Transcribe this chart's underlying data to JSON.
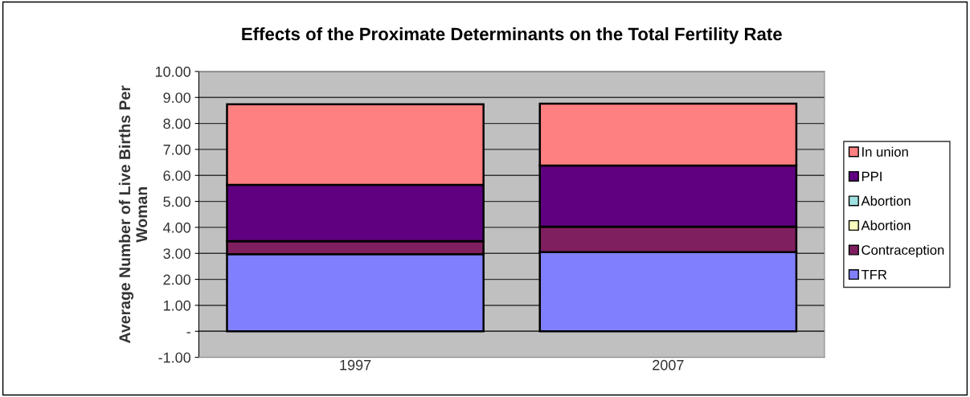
{
  "chart_data": {
    "type": "bar",
    "stacked": true,
    "title": "Effects of the Proximate Determinants on the Total Fertility Rate",
    "ylabel": "Average Number of Live Births Per\nWoman",
    "categories": [
      "1997",
      "2007"
    ],
    "series": [
      {
        "name": "TFR",
        "color": "#8080ff",
        "values": [
          2.97,
          3.05
        ]
      },
      {
        "name": "Contraception",
        "color": "#7f1f5f",
        "values": [
          0.5,
          0.98
        ]
      },
      {
        "name": "Abortion",
        "color": "#ffffc0",
        "values": [
          0,
          0
        ]
      },
      {
        "name": "Abortion",
        "color": "#a0e0e0",
        "values": [
          0,
          0
        ]
      },
      {
        "name": "PPI",
        "color": "#600080",
        "values": [
          2.17,
          2.35
        ]
      },
      {
        "name": "In union",
        "color": "#ff8080",
        "values": [
          3.1,
          2.38
        ]
      }
    ],
    "ylim": [
      -1,
      10
    ],
    "yticks": [
      {
        "value": -1,
        "label": "-1.00"
      },
      {
        "value": 0,
        "label": "-"
      },
      {
        "value": 1,
        "label": "1.00"
      },
      {
        "value": 2,
        "label": "2.00"
      },
      {
        "value": 3,
        "label": "3.00"
      },
      {
        "value": 4,
        "label": "4.00"
      },
      {
        "value": 5,
        "label": "5.00"
      },
      {
        "value": 6,
        "label": "6.00"
      },
      {
        "value": 7,
        "label": "7.00"
      },
      {
        "value": 8,
        "label": "8.00"
      },
      {
        "value": 9,
        "label": "9.00"
      },
      {
        "value": 10,
        "label": "10.00"
      }
    ],
    "grid": "y",
    "legend": "right"
  }
}
